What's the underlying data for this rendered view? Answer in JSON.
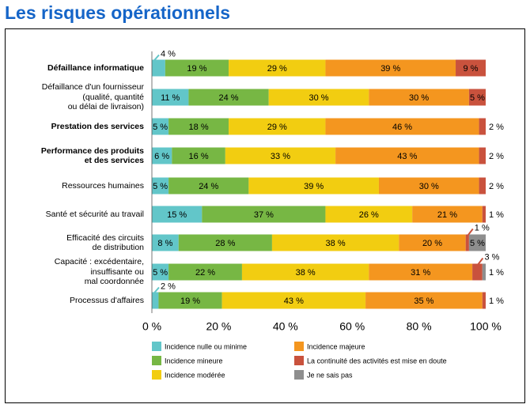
{
  "title": "Les risques opérationnels",
  "chart_data": {
    "type": "bar",
    "orientation": "horizontal",
    "stacked": true,
    "categories": [
      "Défaillance informatique",
      "Défaillance d'un fournisseur\n(qualité, quantité\nou délai de livraison)",
      "Prestation des services",
      "Performance des produits\net des services",
      "Ressources humaines",
      "Santé et sécurité au travail",
      "Efficacité des circuits\nde distribution",
      "Capacité : excédentaire,\ninsuffisante ou\nmal coordonnée",
      "Processus d'affaires"
    ],
    "bold_categories": [
      0,
      2,
      3
    ],
    "series": [
      {
        "name": "Incidence nulle ou minime",
        "color": "#62c6c9",
        "values": [
          4,
          11,
          5,
          6,
          5,
          15,
          8,
          5,
          2
        ]
      },
      {
        "name": "Incidence mineure",
        "color": "#77b744",
        "values": [
          19,
          24,
          18,
          16,
          24,
          37,
          28,
          22,
          19
        ]
      },
      {
        "name": "Incidence modérée",
        "color": "#f2cd11",
        "values": [
          29,
          30,
          29,
          33,
          39,
          26,
          38,
          38,
          43
        ]
      },
      {
        "name": "Incidence majeure",
        "color": "#f4961f",
        "values": [
          39,
          30,
          46,
          43,
          30,
          21,
          20,
          31,
          35
        ]
      },
      {
        "name": "La continuité des activités est mise en doute",
        "color": "#c9523d",
        "values": [
          9,
          5,
          2,
          2,
          2,
          1,
          1,
          3,
          1
        ]
      },
      {
        "name": "Je ne sais pas",
        "color": "#8e8e8e",
        "values": [
          0,
          0,
          0,
          0,
          0,
          0,
          5,
          1,
          0
        ]
      }
    ],
    "labels": [
      [
        "4 %",
        "19 %",
        "29 %",
        "39 %",
        "9 %",
        ""
      ],
      [
        "11 %",
        "24 %",
        "30 %",
        "30 %",
        "5 %",
        ""
      ],
      [
        "5 %",
        "18 %",
        "29 %",
        "46 %",
        "2 %",
        ""
      ],
      [
        "6 %",
        "16 %",
        "33 %",
        "43 %",
        "2 %",
        ""
      ],
      [
        "5 %",
        "24 %",
        "39 %",
        "30 %",
        "2 %",
        ""
      ],
      [
        "15 %",
        "37 %",
        "26 %",
        "21 %",
        "1 %",
        ""
      ],
      [
        "8 %",
        "28 %",
        "38 %",
        "20 %",
        "1 %",
        "5 %"
      ],
      [
        "5 %",
        "22 %",
        "38 %",
        "31 %",
        "3 %",
        "1 %"
      ],
      [
        "2 %",
        "19 %",
        "43 %",
        "35 %",
        "1 %",
        ""
      ]
    ],
    "xticks": [
      "0 %",
      "20 %",
      "40 %",
      "60 %",
      "80 %",
      "100 %"
    ],
    "xlim": [
      0,
      100
    ],
    "legend_position": "bottom"
  }
}
